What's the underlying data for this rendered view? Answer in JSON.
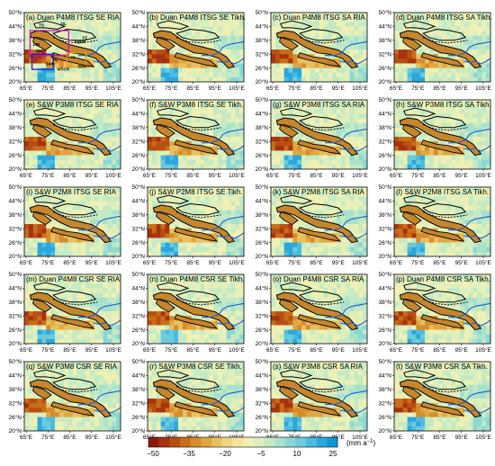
{
  "panels": [
    {
      "title": "(a) Duan P4M8 ITSG SE RIA",
      "seed": 11
    },
    {
      "title": "(b) Duan P4M8 ITSG SE Tikh.",
      "seed": 12
    },
    {
      "title": "(c) Duan P4M8 ITSG SA RIA",
      "seed": 13
    },
    {
      "title": "(d) Duan P4M8 ITSG SA Tikh.",
      "seed": 14
    },
    {
      "title": "(e) S&W P3M8 ITSG SE RIA",
      "seed": 21
    },
    {
      "title": "(f) S&W P3M8 ITSG SE Tikh.",
      "seed": 22
    },
    {
      "title": "(g) S&W P3M8 ITSG SA RIA",
      "seed": 23
    },
    {
      "title": "(h) S&W P3M8 ITSG SA Tikh.",
      "seed": 24
    },
    {
      "title": "(i) S&W P2M8 ITSG SE RIA",
      "seed": 31
    },
    {
      "title": "(j) S&W P2M8 ITSG SE Tikh.",
      "seed": 32
    },
    {
      "title": "(k) S&W P2M8 ITSG SA RIA",
      "seed": 33
    },
    {
      "title": "(l) S&W P2M8 ITSG SA Tikh.",
      "seed": 34
    },
    {
      "title": "(m) Duan P4M8 CSR SE RIA",
      "seed": 41
    },
    {
      "title": "(n) Duan P4M8 CSR SE Tikh.",
      "seed": 42
    },
    {
      "title": "(o) Duan P4M8 CSR SA RIA",
      "seed": 43
    },
    {
      "title": "(p) Duan P4M8 CSR SA Tikh.",
      "seed": 44
    },
    {
      "title": "(q) S&W P3M8 CSR SE RIA",
      "seed": 51
    },
    {
      "title": "(r) S&W P3M8 CSR SE Tikh.",
      "seed": 52
    },
    {
      "title": "(s) S&W P3M8 CSR SA RIA",
      "seed": 53
    },
    {
      "title": "(t) S&W P3M8 CSR SA Tikh.",
      "seed": 54
    }
  ],
  "lat_labels": [
    "50°N",
    "44°N",
    "38°N",
    "32°N",
    "26°N",
    "20°N"
  ],
  "lon_labels": [
    "65°E",
    "75°E",
    "85°E",
    "95°E",
    "105°E"
  ],
  "region_labels": [
    "TS",
    "QL",
    "ENDR",
    "YZ",
    "HM",
    "SWR",
    "UIR",
    "YA",
    "IN",
    "WSCR",
    "BSR"
  ],
  "colorbar": {
    "ticks": [
      "−50",
      "−35",
      "−20",
      "−5",
      "10",
      "25"
    ],
    "unit": "(mm a",
    "unit_sup": "−1",
    "unit_close": ")",
    "colors": [
      "#8c1a0a",
      "#a8320e",
      "#b84f12",
      "#c86d18",
      "#d68c2a",
      "#e0a640",
      "#e8c060",
      "#efd480",
      "#f3e39c",
      "#eef0b4",
      "#dcefbc",
      "#c4eac4",
      "#a8e2cc",
      "#8ad8d4",
      "#6ccadc",
      "#4cbbe0",
      "#2aa8dc",
      "#0e96d4"
    ]
  },
  "colors": {
    "glacier_fill": "#c6862e",
    "river": "#1f5fd0",
    "outline": "#000000",
    "box_a": "#d000d0",
    "box_b": "#e0a000",
    "box_c": "#1010e0"
  }
}
